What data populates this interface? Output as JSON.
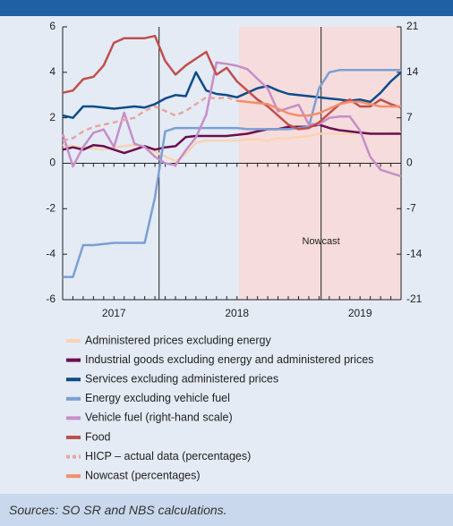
{
  "chart_data": {
    "type": "line",
    "categories": [
      null,
      null,
      null,
      null,
      null,
      "2017",
      null,
      null,
      null,
      null,
      null,
      null,
      null,
      null,
      null,
      null,
      null,
      "2018",
      null,
      null,
      null,
      null,
      null,
      null,
      null,
      null,
      null,
      null,
      null,
      "2019",
      null,
      null,
      null,
      null
    ],
    "ylim": [
      -6,
      6
    ],
    "yticks": [
      -6,
      -4,
      -2,
      0,
      2,
      4,
      6
    ],
    "y2lim": [
      -21,
      21
    ],
    "y2ticks": [
      -21,
      -14,
      -7,
      0,
      7,
      14,
      21
    ],
    "annotation": "Nowcast",
    "source": "Sources: SO SR and NBS calculations.",
    "series": [
      {
        "name": "Administered prices excluding energy",
        "color": "#f9d3b4",
        "values": [
          0.8,
          0.75,
          0.7,
          0.65,
          0.6,
          0.7,
          0.75,
          0.8,
          0.7,
          0.5,
          0.3,
          0.1,
          0.4,
          0.9,
          1.0,
          1.0,
          1.0,
          1.0,
          1.05,
          1.05,
          1.0,
          1.1,
          1.1,
          1.15,
          1.2,
          1.3,
          1.3,
          1.3,
          1.3,
          1.35,
          1.35,
          1.3,
          1.35,
          1.35
        ]
      },
      {
        "name": "Industrial goods excluding energy and administered prices",
        "color": "#6b0f4f",
        "values": [
          0.6,
          0.7,
          0.6,
          0.8,
          0.75,
          0.6,
          0.45,
          0.6,
          0.75,
          0.6,
          0.7,
          0.75,
          1.15,
          1.2,
          1.2,
          1.2,
          1.2,
          1.25,
          1.3,
          1.4,
          1.5,
          1.5,
          1.6,
          1.6,
          1.6,
          1.7,
          1.55,
          1.45,
          1.4,
          1.35,
          1.3,
          1.3,
          1.3,
          1.3
        ]
      },
      {
        "name": "Services excluding administered prices",
        "color": "#0d4c8a",
        "values": [
          2.1,
          2.0,
          2.5,
          2.5,
          2.45,
          2.4,
          2.45,
          2.5,
          2.45,
          2.6,
          2.85,
          3.0,
          2.95,
          4.0,
          3.2,
          3.05,
          3.0,
          2.9,
          3.1,
          3.3,
          3.4,
          3.2,
          3.05,
          3.0,
          2.95,
          2.9,
          2.85,
          2.8,
          2.75,
          2.8,
          2.7,
          3.1,
          3.6,
          4.0
        ]
      },
      {
        "name": "Energy excluding vehicle fuel",
        "color": "#7b9fd4",
        "values": [
          -5,
          -5,
          -3.6,
          -3.6,
          -3.55,
          -3.5,
          -3.5,
          -3.5,
          -3.5,
          -1.5,
          1.4,
          1.55,
          1.55,
          1.55,
          1.55,
          1.55,
          1.55,
          1.55,
          1.5,
          1.5,
          1.5,
          1.5,
          1.5,
          1.55,
          1.6,
          3.3,
          4.0,
          4.1,
          4.1,
          4.1,
          4.1,
          4.1,
          4.1,
          4.1
        ]
      },
      {
        "name": "Vehicle fuel (right-hand scale)",
        "color": "#c68fc8",
        "axis": "y2",
        "values": [
          4.5,
          -0.5,
          2.5,
          4.7,
          5.2,
          2.5,
          7.8,
          3,
          2.5,
          1,
          0,
          -0.3,
          2,
          4,
          7.5,
          15.5,
          15.3,
          15,
          14.5,
          13,
          11.5,
          8,
          8.5,
          9,
          6,
          6,
          7,
          7.2,
          7.2,
          5,
          1,
          -1,
          -1.5,
          -2
        ]
      },
      {
        "name": "Food",
        "color": "#c0504d",
        "values": [
          3.1,
          3.2,
          3.7,
          3.8,
          4.3,
          5.3,
          5.5,
          5.5,
          5.5,
          5.6,
          4.5,
          3.9,
          4.3,
          4.6,
          4.9,
          3.9,
          4.2,
          3.6,
          3.2,
          2.8,
          2.5,
          2.1,
          1.7,
          1.5,
          1.55,
          1.8,
          2.2,
          2.6,
          2.8,
          2.5,
          2.5,
          2.8,
          2.6,
          2.45
        ]
      },
      {
        "name": "HICP – actual data (percentages)",
        "color": "#e8a7a0",
        "dashed": true,
        "values": [
          1.0,
          1.1,
          1.4,
          1.6,
          1.7,
          1.8,
          1.9,
          2.0,
          2.3,
          2.5,
          2.3,
          2.1,
          2.3,
          2.6,
          2.9,
          2.85,
          2.9,
          2.75,
          null,
          null,
          null,
          null,
          null,
          null,
          null,
          null,
          null,
          null,
          null,
          null,
          null,
          null,
          null,
          null
        ]
      },
      {
        "name": "Nowcast (percentages)",
        "color": "#f28e6a",
        "values": [
          null,
          null,
          null,
          null,
          null,
          null,
          null,
          null,
          null,
          null,
          null,
          null,
          null,
          null,
          null,
          null,
          null,
          2.75,
          2.7,
          2.65,
          2.6,
          2.4,
          2.2,
          2.1,
          2.1,
          2.2,
          2.4,
          2.6,
          2.7,
          2.7,
          2.6,
          2.5,
          2.5,
          2.5
        ]
      }
    ]
  }
}
